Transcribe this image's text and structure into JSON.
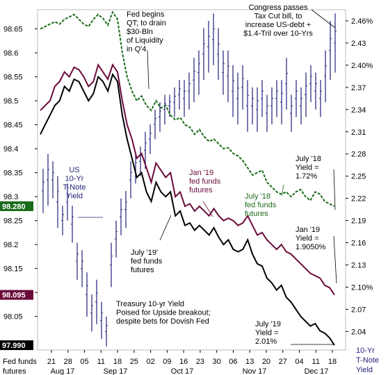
{
  "chart_data": {
    "type": "line",
    "title": "Treasury 10-yr Yield Poised for Upside breakout; despite bets for Dovish Fed",
    "left_axis": {
      "ticks": [
        "98.65",
        "98.6",
        "98.55",
        "98.5",
        "98.45",
        "98.4",
        "98.35",
        "98.3",
        "98.25",
        "98.2",
        "98.15",
        "98.1",
        "98.05"
      ],
      "range": [
        97.98,
        98.69
      ],
      "unit_label": [
        "Fed funds",
        "futures"
      ]
    },
    "right_axis": {
      "ticks": [
        "2.46%",
        "2.43",
        "2.40%",
        "2.37",
        "2.34",
        "2.31",
        "2.28",
        "2.25",
        "2.22",
        "2.19",
        "2.16",
        "2.13",
        "2.10%",
        "2.07",
        "2.04"
      ],
      "range": [
        2.015,
        2.475
      ],
      "unit_label": [
        "10-Yr",
        "T-Note",
        "Yield"
      ]
    },
    "x_axis": {
      "ticks": [
        "21",
        "28",
        "05",
        "11",
        "18",
        "25",
        "02",
        "09",
        "16",
        "23",
        "30",
        "06",
        "13",
        "20",
        "27",
        "04",
        "11",
        "18"
      ],
      "months": [
        "Aug 17",
        "Sep 17",
        "Oct 17",
        "Nov 17",
        "Dec 17"
      ]
    },
    "last_value_tags": [
      {
        "value": "98.280",
        "color": "#1a6b1a"
      },
      {
        "value": "98.095",
        "color": "#6b0a3a"
      },
      {
        "value": "97.990",
        "color": "#000000"
      }
    ],
    "series": [
      {
        "name": "July '18 fed funds futures",
        "axis": "left",
        "color": "#1a6b1a",
        "style": "dashed",
        "values": [
          98.65,
          98.655,
          98.66,
          98.665,
          98.66,
          98.67,
          98.675,
          98.68,
          98.67,
          98.66,
          98.655,
          98.67,
          98.68,
          98.672,
          98.658,
          98.685,
          98.67,
          98.6,
          98.55,
          98.52,
          98.5,
          98.51,
          98.49,
          98.48,
          98.5,
          98.485,
          98.49,
          98.47,
          98.46,
          98.465,
          98.45,
          98.445,
          98.43,
          98.44,
          98.425,
          98.415,
          98.42,
          98.41,
          98.4,
          98.402,
          98.39,
          98.385,
          98.375,
          98.36,
          98.345,
          98.35,
          98.355,
          98.33,
          98.32,
          98.31,
          98.305,
          98.31,
          98.3,
          98.31,
          98.315,
          98.3,
          98.292,
          98.31,
          98.305,
          98.29,
          98.285,
          98.28
        ]
      },
      {
        "name": "Jan '19 fed funds futures",
        "axis": "left",
        "color": "#6b0a3a",
        "style": "solid",
        "values": [
          98.48,
          98.49,
          98.5,
          98.53,
          98.54,
          98.56,
          98.55,
          98.57,
          98.565,
          98.55,
          98.53,
          98.54,
          98.575,
          98.56,
          98.545,
          98.575,
          98.56,
          98.5,
          98.45,
          98.42,
          98.38,
          98.39,
          98.36,
          98.33,
          98.37,
          98.355,
          98.34,
          98.35,
          98.3,
          98.31,
          98.28,
          98.285,
          98.27,
          98.28,
          98.27,
          98.26,
          98.275,
          98.26,
          98.25,
          98.255,
          98.25,
          98.24,
          98.245,
          98.26,
          98.24,
          98.22,
          98.225,
          98.21,
          98.2,
          98.19,
          98.2,
          98.185,
          98.18,
          98.17,
          98.16,
          98.15,
          98.14,
          98.135,
          98.13,
          98.115,
          98.11,
          98.095
        ]
      },
      {
        "name": "July '19' fed funds futures",
        "axis": "left",
        "color": "#000000",
        "style": "solid",
        "values": [
          98.43,
          98.45,
          98.47,
          98.49,
          98.5,
          98.53,
          98.52,
          98.545,
          98.54,
          98.52,
          98.5,
          98.515,
          98.55,
          98.54,
          98.52,
          98.555,
          98.54,
          98.47,
          98.42,
          98.38,
          98.34,
          98.35,
          98.31,
          98.29,
          98.33,
          98.31,
          98.3,
          98.31,
          98.26,
          98.27,
          98.24,
          98.245,
          98.23,
          98.24,
          98.23,
          98.22,
          98.235,
          98.215,
          98.2,
          98.21,
          98.19,
          98.185,
          98.19,
          98.21,
          98.18,
          98.16,
          98.155,
          98.13,
          98.12,
          98.105,
          98.115,
          98.09,
          98.08,
          98.065,
          98.05,
          98.04,
          98.03,
          98.035,
          98.02,
          98.015,
          98.005,
          97.99
        ]
      }
    ],
    "yield_bars_note": "US 10-Yr T-Note Yield (daily high-low bars, right axis)",
    "yield_bars": [
      [
        2.2,
        2.26
      ],
      [
        2.21,
        2.28
      ],
      [
        2.22,
        2.27
      ],
      [
        2.18,
        2.25
      ],
      [
        2.17,
        2.21
      ],
      [
        2.19,
        2.24
      ],
      [
        2.16,
        2.21
      ],
      [
        2.11,
        2.16
      ],
      [
        2.1,
        2.15
      ],
      [
        2.06,
        2.12
      ],
      [
        2.04,
        2.09
      ],
      [
        2.05,
        2.11
      ],
      [
        2.03,
        2.08
      ],
      [
        2.02,
        2.06
      ],
      [
        2.1,
        2.16
      ],
      [
        2.14,
        2.19
      ],
      [
        2.17,
        2.22
      ],
      [
        2.18,
        2.23
      ],
      [
        2.22,
        2.27
      ],
      [
        2.24,
        2.28
      ],
      [
        2.25,
        2.29
      ],
      [
        2.26,
        2.31
      ],
      [
        2.28,
        2.32
      ],
      [
        2.3,
        2.34
      ],
      [
        2.31,
        2.35
      ],
      [
        2.32,
        2.36
      ],
      [
        2.33,
        2.36
      ],
      [
        2.33,
        2.37
      ],
      [
        2.34,
        2.38
      ],
      [
        2.33,
        2.38
      ],
      [
        2.34,
        2.39
      ],
      [
        2.35,
        2.41
      ],
      [
        2.36,
        2.42
      ],
      [
        2.38,
        2.45
      ],
      [
        2.39,
        2.46
      ],
      [
        2.4,
        2.47
      ],
      [
        2.38,
        2.45
      ],
      [
        2.36,
        2.42
      ],
      [
        2.35,
        2.42
      ],
      [
        2.33,
        2.4
      ],
      [
        2.32,
        2.39
      ],
      [
        2.34,
        2.4
      ],
      [
        2.31,
        2.38
      ],
      [
        2.32,
        2.37
      ],
      [
        2.31,
        2.37
      ],
      [
        2.33,
        2.38
      ],
      [
        2.31,
        2.36
      ],
      [
        2.32,
        2.37
      ],
      [
        2.33,
        2.38
      ],
      [
        2.32,
        2.38
      ],
      [
        2.34,
        2.41
      ],
      [
        2.31,
        2.36
      ],
      [
        2.33,
        2.38
      ],
      [
        2.32,
        2.37
      ],
      [
        2.33,
        2.39
      ],
      [
        2.35,
        2.4
      ],
      [
        2.34,
        2.39
      ],
      [
        2.33,
        2.38
      ],
      [
        2.35,
        2.42
      ],
      [
        2.38,
        2.46
      ],
      [
        2.39,
        2.47
      ]
    ],
    "annotations": [
      {
        "lines": [
          "Fed begins",
          "QT; to drain",
          "$30-Bln",
          "of Liquidity",
          "in Q'4"
        ],
        "color": "#000000"
      },
      {
        "lines": [
          "Congress passes",
          "Tax Cut bill, to",
          "increase US-debt +",
          "$1.4-Tril over 10-Yrs"
        ],
        "color": "#000000"
      },
      {
        "lines": [
          "US",
          "10-Yr",
          "T-Note",
          "Yield"
        ],
        "color": "#1f1f7a"
      },
      {
        "lines": [
          "Jan '19",
          "fed funds",
          "futures"
        ],
        "color": "#6b0a3a"
      },
      {
        "lines": [
          "July '18",
          "fed funds",
          "futures"
        ],
        "color": "#1a6b1a"
      },
      {
        "lines": [
          "July '19'",
          "fed funds",
          "futures"
        ],
        "color": "#000000"
      },
      {
        "lines": [
          "July '18",
          "Yield =",
          "1.72%"
        ],
        "color": "#000000"
      },
      {
        "lines": [
          "Jan '19",
          "Yield =",
          "1.9050%"
        ],
        "color": "#000000"
      },
      {
        "lines": [
          "July '19",
          "Yield =",
          "2.01%"
        ],
        "color": "#000000"
      },
      {
        "lines": [
          "Treasury 10-yr Yield",
          "Poised for Upside breakout;",
          "despite bets for Dovish Fed"
        ],
        "color": "#000000"
      }
    ]
  }
}
